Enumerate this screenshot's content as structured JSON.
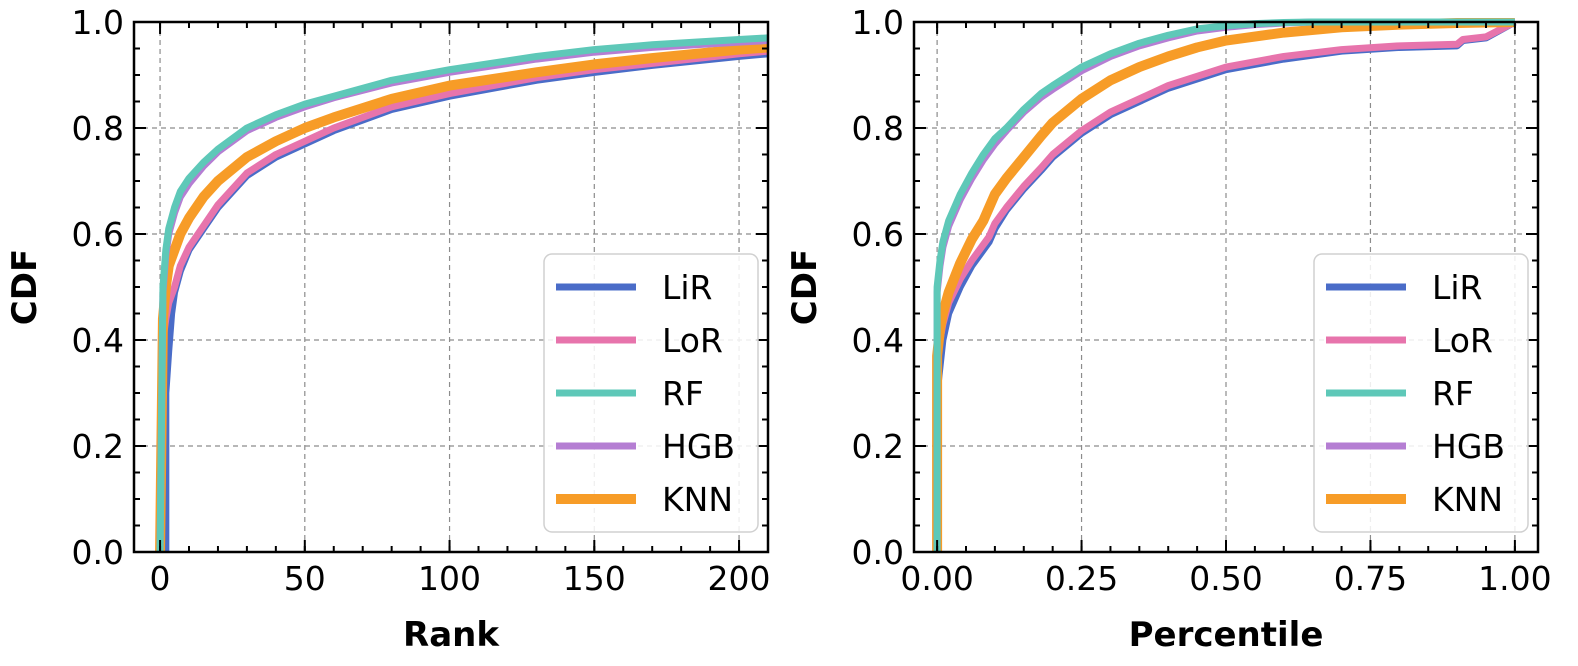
{
  "colors": {
    "LiR": "#4a6cc8",
    "LoR": "#e774ac",
    "RF": "#5ec8b8",
    "HGB": "#b57ed3",
    "KNN": "#f79c27"
  },
  "chart_data": [
    {
      "type": "line",
      "title": "",
      "xlabel": "Rank",
      "ylabel": "CDF",
      "xlim": [
        -9,
        210
      ],
      "ylim": [
        0,
        1
      ],
      "xticks": [
        0,
        50,
        100,
        150,
        200
      ],
      "xtick_labels": [
        "0",
        "50",
        "100",
        "150",
        "200"
      ],
      "yticks": [
        0,
        0.2,
        0.4,
        0.6,
        0.8,
        1.0
      ],
      "ytick_labels": [
        "0.0",
        "0.2",
        "0.4",
        "0.6",
        "0.8",
        "1.0"
      ],
      "grid": true,
      "legend_position": "lower-right",
      "series": [
        {
          "name": "LiR",
          "x": [
            0,
            2,
            2,
            3,
            4,
            5,
            7,
            10,
            15,
            20,
            30,
            40,
            50,
            60,
            80,
            100,
            130,
            150,
            170,
            200,
            210
          ],
          "y": [
            0,
            0,
            0.3,
            0.38,
            0.45,
            0.49,
            0.53,
            0.57,
            0.61,
            0.65,
            0.71,
            0.745,
            0.77,
            0.795,
            0.835,
            0.86,
            0.89,
            0.905,
            0.918,
            0.935,
            0.94
          ]
        },
        {
          "name": "LoR",
          "x": [
            0,
            1,
            2,
            3,
            5,
            7,
            10,
            15,
            20,
            30,
            40,
            50,
            60,
            80,
            100,
            130,
            150,
            170,
            200,
            210
          ],
          "y": [
            0,
            0.4,
            0.44,
            0.47,
            0.5,
            0.54,
            0.575,
            0.615,
            0.655,
            0.715,
            0.75,
            0.775,
            0.8,
            0.84,
            0.865,
            0.895,
            0.91,
            0.922,
            0.94,
            0.945
          ]
        },
        {
          "name": "RF",
          "x": [
            0,
            1,
            2,
            3,
            5,
            7,
            10,
            15,
            20,
            30,
            40,
            50,
            60,
            80,
            100,
            130,
            150,
            170,
            200,
            210
          ],
          "y": [
            0,
            0.5,
            0.57,
            0.61,
            0.65,
            0.68,
            0.705,
            0.735,
            0.76,
            0.8,
            0.825,
            0.845,
            0.86,
            0.89,
            0.91,
            0.935,
            0.948,
            0.957,
            0.967,
            0.97
          ]
        },
        {
          "name": "HGB",
          "x": [
            0,
            1,
            2,
            3,
            5,
            7,
            10,
            15,
            20,
            30,
            40,
            50,
            60,
            80,
            100,
            130,
            150,
            170,
            200,
            210
          ],
          "y": [
            0,
            0.49,
            0.56,
            0.6,
            0.64,
            0.67,
            0.695,
            0.728,
            0.755,
            0.795,
            0.82,
            0.84,
            0.857,
            0.885,
            0.905,
            0.93,
            0.943,
            0.952,
            0.962,
            0.965
          ]
        },
        {
          "name": "KNN",
          "x": [
            0,
            1,
            2,
            3,
            5,
            7,
            10,
            15,
            20,
            30,
            40,
            50,
            60,
            80,
            100,
            130,
            150,
            170,
            200,
            210
          ],
          "y": [
            0,
            0.44,
            0.5,
            0.54,
            0.57,
            0.6,
            0.63,
            0.67,
            0.7,
            0.745,
            0.775,
            0.8,
            0.82,
            0.855,
            0.88,
            0.905,
            0.92,
            0.932,
            0.948,
            0.952
          ]
        }
      ]
    },
    {
      "type": "line",
      "title": "",
      "xlabel": "Percentile",
      "ylabel": "CDF",
      "xlim": [
        -0.04,
        1.04
      ],
      "ylim": [
        0,
        1
      ],
      "xticks": [
        0,
        0.25,
        0.5,
        0.75,
        1.0
      ],
      "xtick_labels": [
        "0.00",
        "0.25",
        "0.50",
        "0.75",
        "1.00"
      ],
      "yticks": [
        0,
        0.2,
        0.4,
        0.6,
        0.8,
        1.0
      ],
      "ytick_labels": [
        "0.0",
        "0.2",
        "0.4",
        "0.6",
        "0.8",
        "1.0"
      ],
      "grid": true,
      "legend_position": "lower-right",
      "series": [
        {
          "name": "LiR",
          "x": [
            0,
            0,
            0.005,
            0.01,
            0.02,
            0.04,
            0.06,
            0.09,
            0.1,
            0.12,
            0.15,
            0.18,
            0.2,
            0.25,
            0.3,
            0.4,
            0.5,
            0.6,
            0.7,
            0.8,
            0.9,
            0.91,
            0.95,
            1.0
          ],
          "y": [
            0,
            0.3,
            0.35,
            0.4,
            0.45,
            0.5,
            0.54,
            0.585,
            0.61,
            0.645,
            0.685,
            0.72,
            0.745,
            0.79,
            0.825,
            0.875,
            0.91,
            0.93,
            0.945,
            0.952,
            0.955,
            0.965,
            0.97,
            1.0
          ]
        },
        {
          "name": "LoR",
          "x": [
            0,
            0,
            0.005,
            0.01,
            0.02,
            0.04,
            0.06,
            0.09,
            0.1,
            0.12,
            0.15,
            0.18,
            0.2,
            0.25,
            0.3,
            0.4,
            0.5,
            0.6,
            0.7,
            0.8,
            0.9,
            0.91,
            0.95,
            1.0
          ],
          "y": [
            0,
            0.36,
            0.4,
            0.43,
            0.47,
            0.515,
            0.55,
            0.595,
            0.62,
            0.65,
            0.69,
            0.725,
            0.75,
            0.795,
            0.83,
            0.88,
            0.915,
            0.935,
            0.948,
            0.955,
            0.958,
            0.967,
            0.972,
            1.0
          ]
        },
        {
          "name": "RF",
          "x": [
            0,
            0,
            0.005,
            0.01,
            0.02,
            0.04,
            0.06,
            0.08,
            0.1,
            0.12,
            0.15,
            0.18,
            0.2,
            0.25,
            0.3,
            0.35,
            0.4,
            0.45,
            0.5,
            0.55,
            0.6,
            0.65,
            1.0
          ],
          "y": [
            0,
            0.5,
            0.55,
            0.585,
            0.625,
            0.675,
            0.715,
            0.75,
            0.78,
            0.8,
            0.835,
            0.865,
            0.88,
            0.915,
            0.94,
            0.96,
            0.975,
            0.987,
            0.993,
            0.997,
            0.999,
            1.0,
            1.0
          ]
        },
        {
          "name": "HGB",
          "x": [
            0,
            0,
            0.005,
            0.01,
            0.02,
            0.04,
            0.06,
            0.08,
            0.1,
            0.12,
            0.15,
            0.18,
            0.2,
            0.25,
            0.3,
            0.35,
            0.4,
            0.45,
            0.5,
            0.55,
            0.6,
            0.65,
            1.0
          ],
          "y": [
            0,
            0.49,
            0.54,
            0.575,
            0.615,
            0.665,
            0.705,
            0.74,
            0.77,
            0.795,
            0.83,
            0.858,
            0.873,
            0.908,
            0.935,
            0.955,
            0.97,
            0.983,
            0.99,
            0.995,
            0.998,
            1.0,
            1.0
          ]
        },
        {
          "name": "KNN",
          "x": [
            0,
            0,
            0.005,
            0.01,
            0.02,
            0.04,
            0.06,
            0.08,
            0.1,
            0.12,
            0.15,
            0.18,
            0.2,
            0.25,
            0.3,
            0.35,
            0.4,
            0.45,
            0.5,
            0.6,
            0.7,
            0.8,
            0.9,
            1.0
          ],
          "y": [
            0,
            0.37,
            0.42,
            0.45,
            0.49,
            0.545,
            0.59,
            0.625,
            0.675,
            0.705,
            0.745,
            0.785,
            0.81,
            0.855,
            0.89,
            0.915,
            0.935,
            0.952,
            0.965,
            0.98,
            0.99,
            0.995,
            0.998,
            1.0
          ]
        }
      ]
    }
  ]
}
